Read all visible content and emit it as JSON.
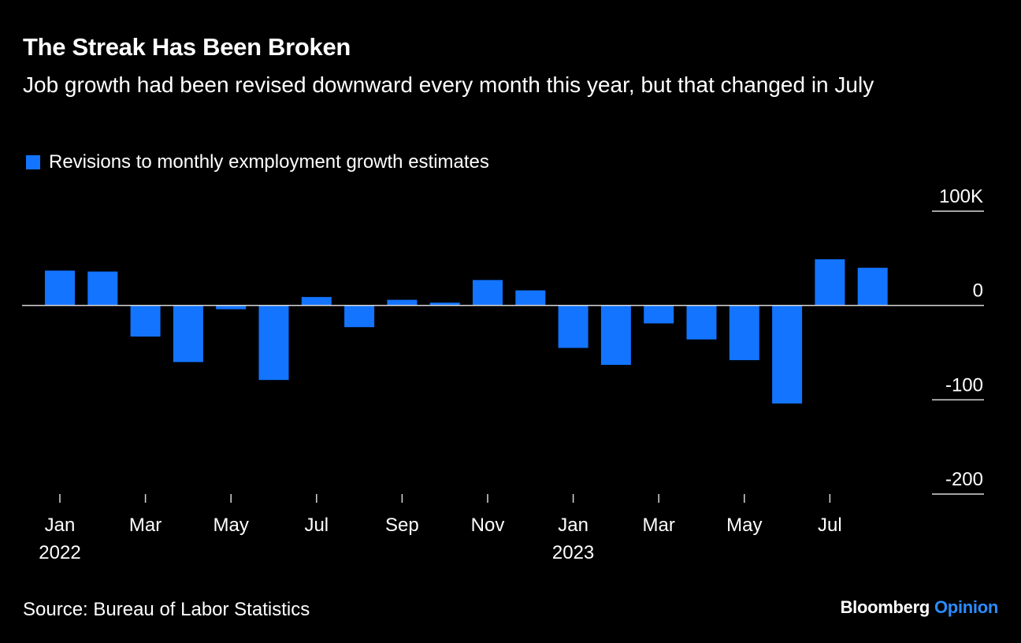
{
  "header": {
    "title": "The Streak Has Been Broken",
    "subtitle": "Job growth had been revised downward every month this year, but that changed in July"
  },
  "footer": {
    "source": "Source: Bureau of Labor Statistics",
    "brand_primary": "Bloomberg",
    "brand_secondary": "Opinion"
  },
  "colors": {
    "background": "#000000",
    "bar": "#1374FF",
    "text": "#FFFFFF",
    "gridline": "#D9D9D9",
    "brand_accent": "#2B8CFF"
  },
  "chart_data": {
    "type": "bar",
    "title": "The Streak Has Been Broken",
    "subtitle": "Job growth had been revised downward every month this year, but that changed in July",
    "xlabel": "",
    "ylabel": "",
    "legend": {
      "entries": [
        "Revisions to monthly exmployment growth estimates"
      ],
      "position": "top-left"
    },
    "categories": [
      "Jan 2022",
      "Feb 2022",
      "Mar 2022",
      "Apr 2022",
      "May 2022",
      "Jun 2022",
      "Jul 2022",
      "Aug 2022",
      "Sep 2022",
      "Oct 2022",
      "Nov 2022",
      "Dec 2022",
      "Jan 2023",
      "Feb 2023",
      "Mar 2023",
      "Apr 2023",
      "May 2023",
      "Jun 2023",
      "Jul 2023",
      "Aug 2023"
    ],
    "series": [
      {
        "name": "Revisions to monthly exmployment growth estimates",
        "unit": "thousands",
        "values": [
          37,
          36,
          -33,
          -60,
          -4,
          -79,
          9,
          -23,
          6,
          3,
          27,
          16,
          -45,
          -63,
          -19,
          -36,
          -58,
          -104,
          49,
          40
        ]
      }
    ],
    "ylim": [
      -200,
      100
    ],
    "yticks": [
      100,
      0,
      -100,
      -200
    ],
    "ytick_labels": [
      "100K",
      "0",
      "-100",
      "-200"
    ],
    "y_axis_side": "right",
    "xticks": [
      {
        "index": 0,
        "label": "Jan",
        "year": "2022"
      },
      {
        "index": 2,
        "label": "Mar",
        "year": ""
      },
      {
        "index": 4,
        "label": "May",
        "year": ""
      },
      {
        "index": 6,
        "label": "Jul",
        "year": ""
      },
      {
        "index": 8,
        "label": "Sep",
        "year": ""
      },
      {
        "index": 10,
        "label": "Nov",
        "year": ""
      },
      {
        "index": 12,
        "label": "Jan",
        "year": "2023"
      },
      {
        "index": 14,
        "label": "Mar",
        "year": ""
      },
      {
        "index": 16,
        "label": "May",
        "year": ""
      },
      {
        "index": 18,
        "label": "Jul",
        "year": ""
      }
    ],
    "grid": true
  }
}
